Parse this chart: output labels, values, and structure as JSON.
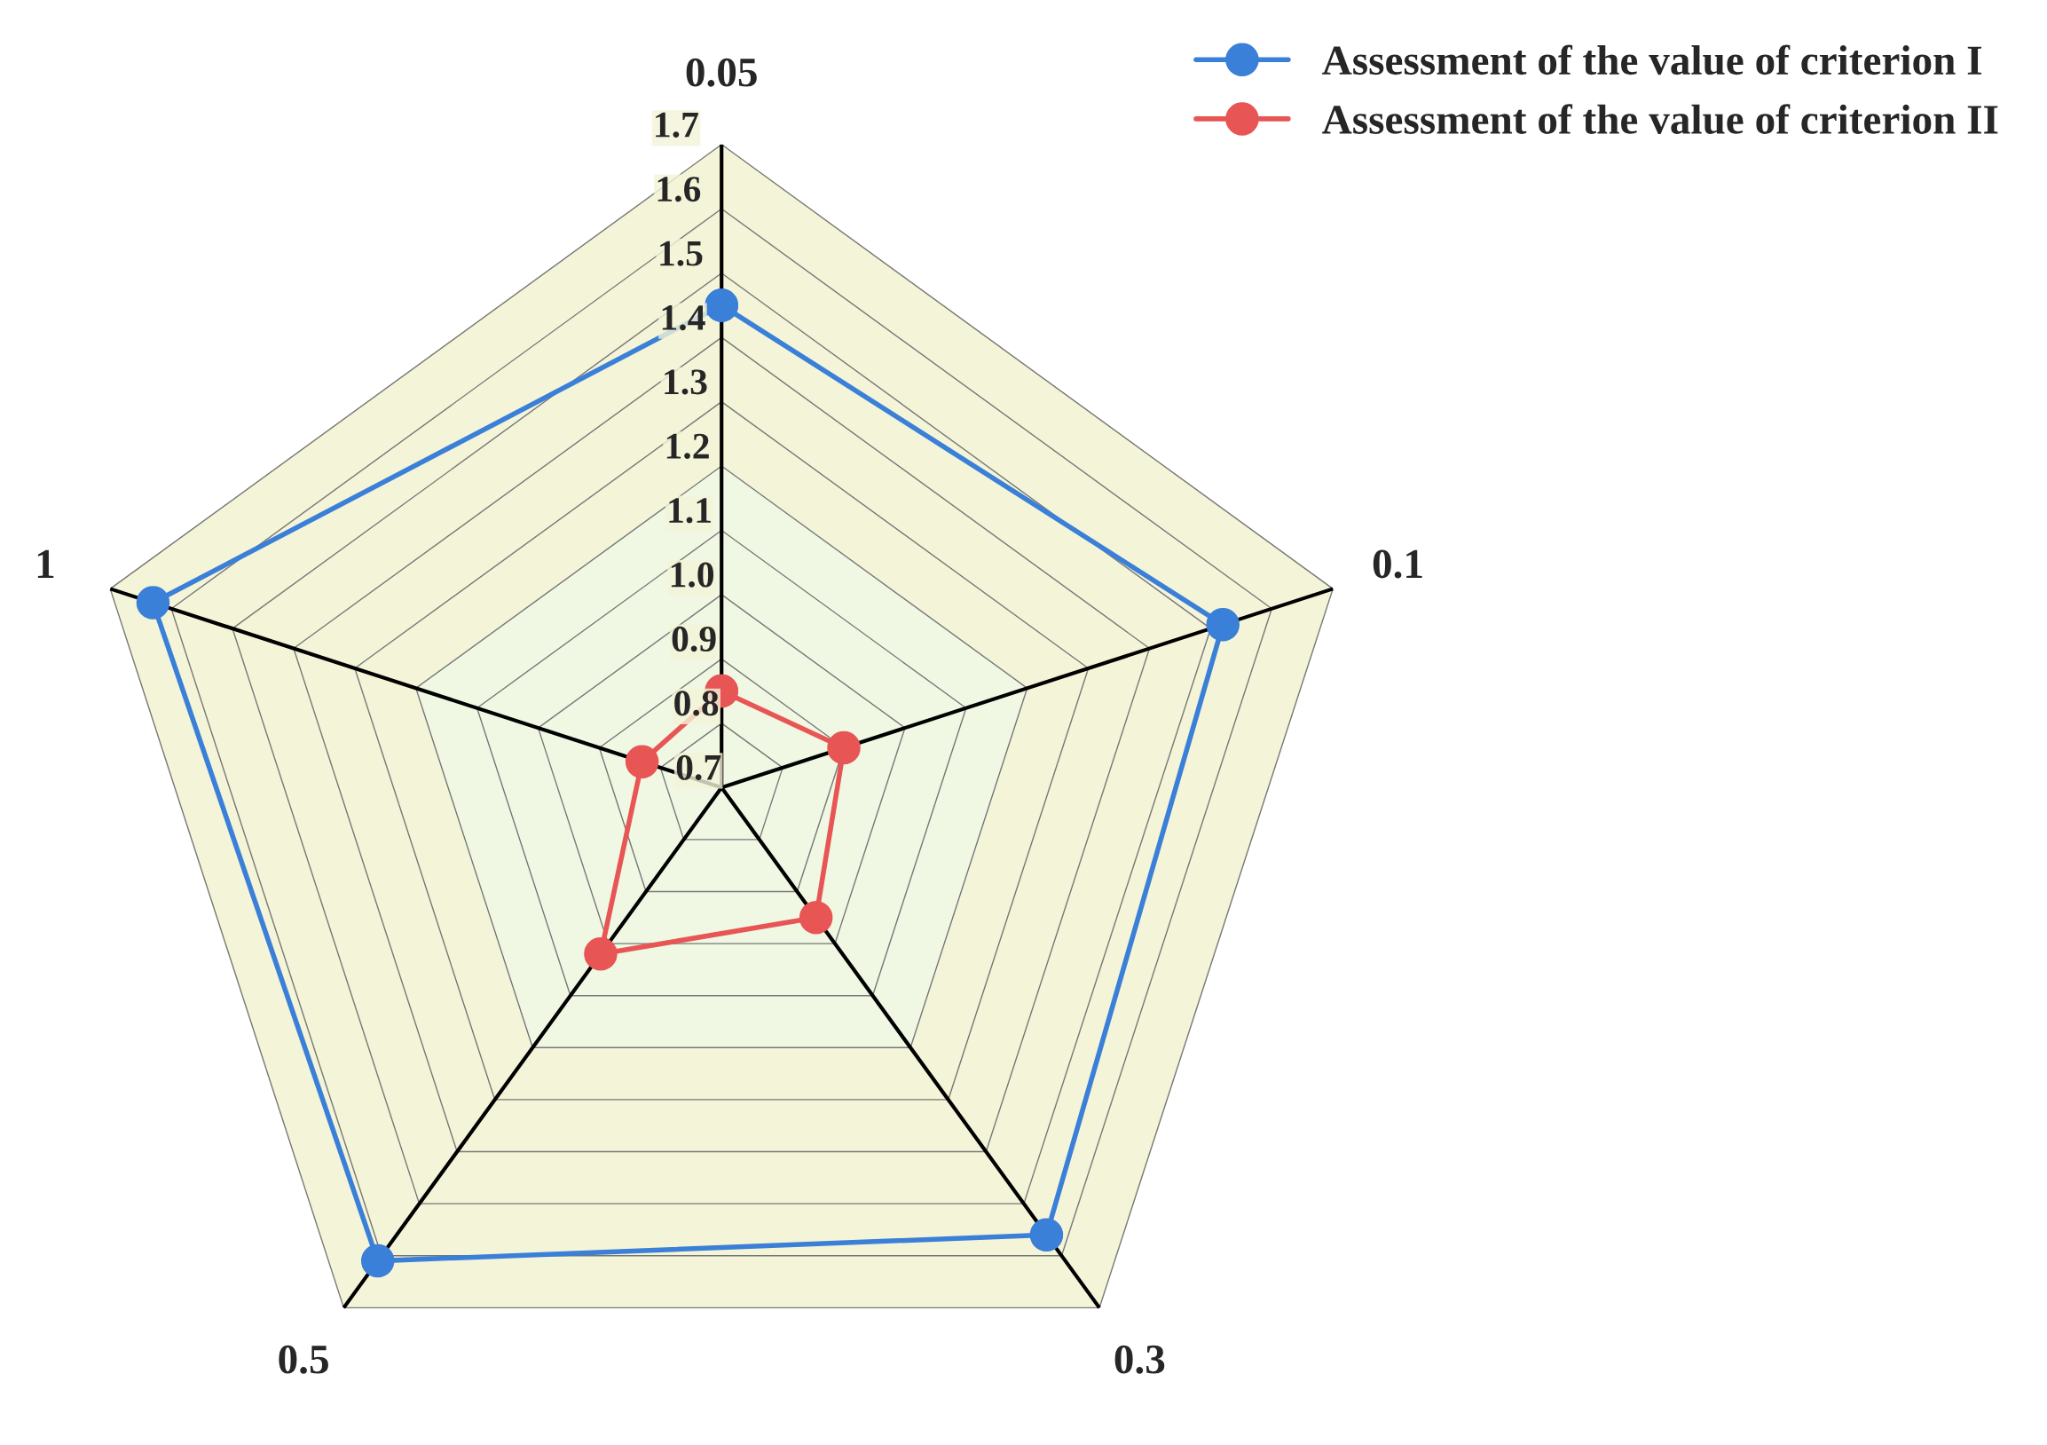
{
  "chart_data": {
    "type": "radar",
    "categories": [
      "0.05",
      "0.1",
      "0.3",
      "0.5",
      "1"
    ],
    "series": [
      {
        "name": "Assessment of the value of criterion I",
        "color": "#3a7fd8",
        "values": [
          1.45,
          1.52,
          1.56,
          1.61,
          1.63
        ]
      },
      {
        "name": "Assessment of the value of criterion II",
        "color": "#e85555",
        "values": [
          0.85,
          0.9,
          0.95,
          1.02,
          0.83
        ]
      }
    ],
    "ylim": [
      0.7,
      1.7
    ],
    "yticks": [
      0.7,
      0.8,
      0.9,
      {
        "value": 1,
        "label": "1.0"
      },
      1.1,
      1.2,
      1.3,
      1.4,
      1.5,
      1.6,
      1.7
    ],
    "marker": "circle",
    "grid": true,
    "legend": "top right"
  }
}
